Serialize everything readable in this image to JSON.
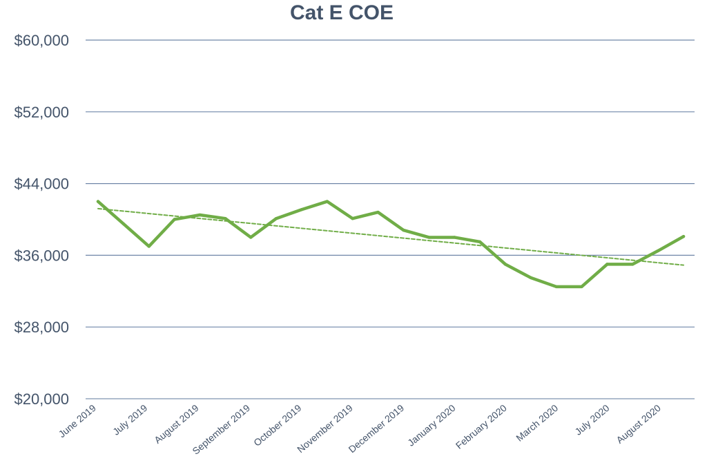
{
  "chart_data": {
    "type": "line",
    "title": "Cat E COE",
    "xlabel": "",
    "ylabel": "",
    "ylim": [
      20000,
      60000
    ],
    "yticks": [
      20000,
      28000,
      36000,
      44000,
      52000,
      60000
    ],
    "ytick_labels": [
      "$20,000",
      "$28,000",
      "$36,000",
      "$44,000",
      "$52,000",
      "$60,000"
    ],
    "x_tick_labels": [
      "June 2019",
      "July 2019",
      "August 2019",
      "September 2019",
      "October 2019",
      "November 2019",
      "December 2019",
      "January 2020",
      "February 2020",
      "March 2020",
      "July 2020",
      "August 2020"
    ],
    "grid": true,
    "legend": "none",
    "series": [
      {
        "color": "#70ad47",
        "style": "solid",
        "values": [
          42000,
          39500,
          37000,
          40000,
          40500,
          40100,
          38000,
          40100,
          41100,
          42000,
          40100,
          40800,
          38800,
          38000,
          38000,
          37500,
          35000,
          33500,
          32500,
          32500,
          35000,
          35000,
          36500,
          38100
        ]
      },
      {
        "color": "#70ad47",
        "style": "dashed",
        "values": [
          41200,
          34900
        ]
      }
    ]
  }
}
